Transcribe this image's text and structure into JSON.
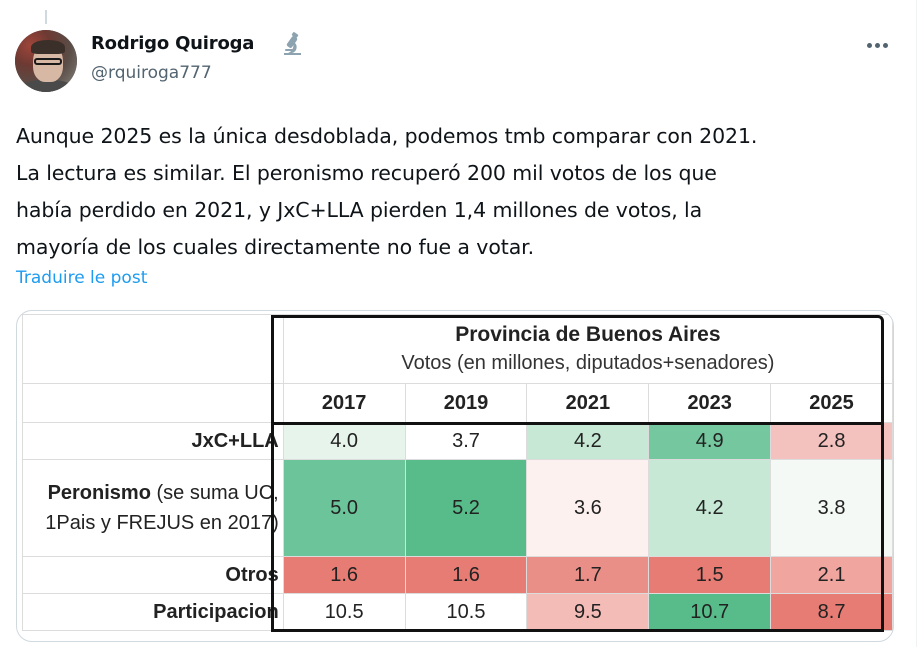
{
  "tweet": {
    "author_name": "Rodrigo Quiroga",
    "author_badge_icon": "microscope-icon",
    "author_handle": "@rquiroga777",
    "more_icon": "more-horizontal-icon",
    "text_lines": [
      "Aunque 2025 es la única desdoblada, podemos tmb comparar con 2021.",
      "La lectura es similar. El peronismo recuperó 200 mil votos de los que",
      "había perdido en 2021, y JxC+LLA pierden 1,4 millones de votos, la",
      "mayoría de los cuales directamente no fue a votar."
    ],
    "translate_link": "Traduire le post"
  },
  "colors": {
    "link": "#1d9bf0",
    "handle": "#536471",
    "text": "#0f1419",
    "heat_green_strong": "#57bb8a",
    "heat_white": "#ffffff",
    "heat_red_strong": "#e67c73"
  },
  "chart_data": {
    "type": "table",
    "title": "Provincia de Buenos Aires",
    "subtitle": "Votos (en millones, diputados+senadores)",
    "columns": [
      "2017",
      "2019",
      "2021",
      "2023",
      "2025"
    ],
    "rows": [
      {
        "label_bold": "JxC+LLA",
        "label_rest": "",
        "values": [
          "4.0",
          "3.7",
          "4.2",
          "4.9",
          "2.8"
        ],
        "colors": [
          "#e6f4ec",
          "#ffffff",
          "#c6e8d5",
          "#74c79e",
          "#f4c2be"
        ]
      },
      {
        "label_bold": "Peronismo",
        "label_rest": " (se suma UC, 1Pais y FREJUS en 2017)",
        "values": [
          "5.0",
          "5.2",
          "3.6",
          "4.2",
          "3.8"
        ],
        "colors": [
          "#6cc49a",
          "#57bb8a",
          "#fdf1f0",
          "#c6e8d5",
          "#f4f9f6"
        ]
      },
      {
        "label_bold": "Otros",
        "label_rest": "",
        "values": [
          "1.6",
          "1.6",
          "1.7",
          "1.5",
          "2.1"
        ],
        "colors": [
          "#e67c73",
          "#e67c73",
          "#ea8f87",
          "#e67c73",
          "#f0a59f"
        ]
      },
      {
        "label_bold": "Participacion",
        "label_rest": "",
        "values": [
          "10.5",
          "10.5",
          "9.5",
          "10.7",
          "8.7"
        ],
        "colors": [
          "#ffffff",
          "#ffffff",
          "#f4bcb7",
          "#57bb8a",
          "#e67c73"
        ]
      }
    ],
    "units": "millones de votos"
  }
}
